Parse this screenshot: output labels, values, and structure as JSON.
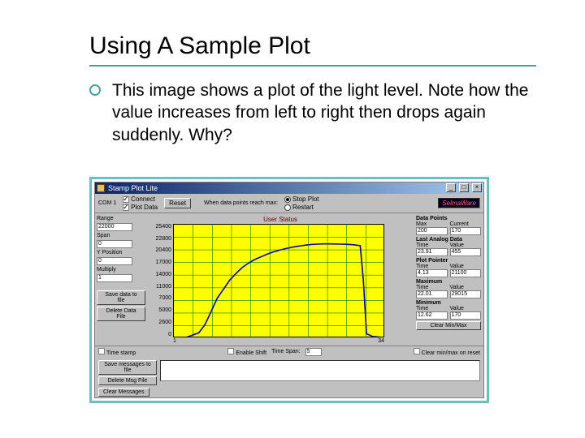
{
  "slide": {
    "title": "Using A Sample Plot",
    "title_rule_color": "#4aa0a0",
    "bullet_marker_color": "#4aa0a0",
    "bullet_text": "This image shows a plot of the light level.  Note how the value increases from left to right then drops again suddenly.  Why?",
    "frame_border_color": "#6cbfbf"
  },
  "app": {
    "title": "Stamp Plot Lite",
    "titlebar_gradient": [
      "#0a246a",
      "#a6caf0"
    ],
    "window_bg": "#c0c0c0",
    "logo_text": "SelmaWare",
    "toolbar": {
      "com_label": "COM 1",
      "connect": {
        "label": "Connect",
        "checked": true
      },
      "plot_data": {
        "label": "Plot Data",
        "checked": true
      },
      "reset_label": "Reset",
      "when_text": "When data points reach max:",
      "stop_plot": {
        "label": "Stop Plot",
        "checked": true
      },
      "restart": {
        "label": "Restart",
        "checked": false
      }
    },
    "left_panel": {
      "range": {
        "label": "Range",
        "value": "22000"
      },
      "span": {
        "label": "Span",
        "value": "0"
      },
      "y_position": {
        "label": "Y Position",
        "value": "0"
      },
      "multiply": {
        "label": "Multiply",
        "value": "1"
      },
      "save_data_btn": "Save data to file",
      "delete_data_btn": "Delete Data File"
    },
    "chart": {
      "type": "line",
      "title": "User Status",
      "plot_bg": "#ffff00",
      "grid_color": "#008000",
      "line_color": "#0000c0",
      "line_width": 1.6,
      "y_ticks": [
        "25400",
        "22800",
        "20400",
        "17000",
        "14000",
        "11000",
        "7000",
        "5000",
        "2600",
        "0"
      ],
      "x_ticks": [
        "1",
        "34"
      ],
      "xlim": [
        0,
        34
      ],
      "ylim": [
        0,
        25400
      ],
      "n_vgrid": 11,
      "n_hgrid": 9,
      "data": [
        [
          0,
          150
        ],
        [
          2,
          200
        ],
        [
          4,
          1200
        ],
        [
          5,
          3000
        ],
        [
          6,
          6000
        ],
        [
          7,
          9000
        ],
        [
          8,
          11000
        ],
        [
          9,
          13000
        ],
        [
          10,
          14500
        ],
        [
          11,
          15800
        ],
        [
          12,
          16800
        ],
        [
          13,
          17600
        ],
        [
          14,
          18200
        ],
        [
          15,
          18800
        ],
        [
          16,
          19300
        ],
        [
          17,
          19700
        ],
        [
          18,
          20050
        ],
        [
          19,
          20350
        ],
        [
          20,
          20600
        ],
        [
          21,
          20800
        ],
        [
          22,
          20950
        ],
        [
          23,
          21050
        ],
        [
          24,
          21100
        ],
        [
          25,
          21100
        ],
        [
          26,
          21080
        ],
        [
          27,
          21050
        ],
        [
          28,
          21000
        ],
        [
          29,
          20900
        ],
        [
          30,
          20700
        ],
        [
          30.5,
          13000
        ],
        [
          31,
          1000
        ],
        [
          32,
          400
        ],
        [
          33,
          250
        ],
        [
          34,
          170
        ]
      ]
    },
    "right_panel": {
      "data_points": {
        "title": "Data Points",
        "labels": [
          "Max",
          "Current"
        ],
        "values": [
          "200",
          "170"
        ]
      },
      "last_analog": {
        "title": "Last Analog Data",
        "labels": [
          "Time",
          "Value"
        ],
        "values": [
          "23.91",
          "455"
        ]
      },
      "plot_pointer": {
        "title": "Plot Pointer",
        "labels": [
          "Time",
          "Value"
        ],
        "values": [
          "4.13",
          "21100"
        ]
      },
      "maximum": {
        "title": "Maximum",
        "labels": [
          "Time",
          "Value"
        ],
        "values": [
          "22.01",
          "29015"
        ]
      },
      "minimum": {
        "title": "Minimum",
        "labels": [
          "Time",
          "Value"
        ],
        "values": [
          "12.62",
          "170"
        ]
      },
      "clear_btn": "Clear Min/Max"
    },
    "under_bar": {
      "time_stamp": {
        "label": "Time stamp",
        "checked": false
      },
      "enable_shift": {
        "label": "Enable Shift",
        "checked": false
      },
      "time_span": {
        "label": "Time Span:",
        "value": "5"
      },
      "clear_minmax": {
        "label": "Clear min/max on reset",
        "checked": false
      }
    },
    "messages": {
      "save_btn": "Save messages to file",
      "delete_btn": "Delete Msg File",
      "clear_btn": "Clear Messages"
    }
  }
}
